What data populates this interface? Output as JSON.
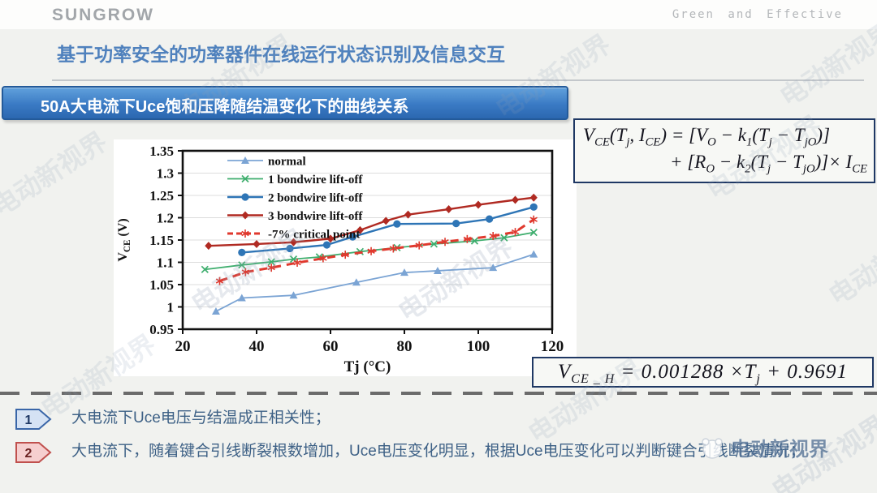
{
  "header": {
    "logo": "SUNGROW",
    "tagline": "Green and Effective"
  },
  "title": "基于功率安全的功率器件在线运行状态识别及信息交互",
  "banner": "50A大电流下Uce饱和压降随结温变化下的曲线关系",
  "formulas": {
    "vce_model_line1": "V_{CE}(T_{j}, I_{CE}) = [V_{O} − k_{1}(T_{j} − T_{jO})]",
    "vce_model_line2": "+ [R_{O} − k_{2}(T_{j} − T_{jO})]× I_{CE}",
    "vce_fit": "V_{CE _ H} = 0.001288 ×T_{j} + 0.9691"
  },
  "points": [
    {
      "num": "1",
      "text": "大电流下Uce电压与结温成正相关性；"
    },
    {
      "num": "2",
      "text": "大电流下，随着键合引线断裂根数增加，Uce电压变化明显，根据Uce电压变化可以判断键合引线断裂情况；"
    }
  ],
  "watermark": {
    "text": "电动新视界",
    "logo": "cat-face-icon"
  },
  "chart_data": {
    "type": "line",
    "title": "",
    "xlabel": "Tj (°C)",
    "ylabel": "V_{CE} (V)",
    "xlim": [
      20,
      120
    ],
    "ylim": [
      0.95,
      1.35
    ],
    "xticks": [
      20,
      40,
      60,
      80,
      100,
      120
    ],
    "yticks": [
      0.95,
      1,
      1.05,
      1.1,
      1.15,
      1.2,
      1.25,
      1.3,
      1.35
    ],
    "grid": "horizontal",
    "legend_position": "top-center-inside",
    "series": [
      {
        "name": "normal",
        "color": "#7ba4d4",
        "marker": "triangle",
        "dash": "solid",
        "width": 1.8,
        "points": [
          [
            29,
            0.99
          ],
          [
            36,
            1.02
          ],
          [
            50,
            1.026
          ],
          [
            67,
            1.055
          ],
          [
            80,
            1.077
          ],
          [
            89,
            1.081
          ],
          [
            104,
            1.088
          ],
          [
            115,
            1.118
          ]
        ]
      },
      {
        "name": "1 bondwire lift-off",
        "color": "#3fae6e",
        "marker": "x",
        "dash": "solid",
        "width": 1.8,
        "points": [
          [
            26,
            1.084
          ],
          [
            36,
            1.094
          ],
          [
            44,
            1.101
          ],
          [
            50,
            1.107
          ],
          [
            57,
            1.112
          ],
          [
            68,
            1.124
          ],
          [
            78,
            1.133
          ],
          [
            88,
            1.141
          ],
          [
            99,
            1.148
          ],
          [
            107,
            1.155
          ],
          [
            115,
            1.167
          ]
        ]
      },
      {
        "name": "2 bondwire lift-off",
        "color": "#2e75b6",
        "marker": "circle",
        "dash": "solid",
        "width": 2.4,
        "points": [
          [
            36,
            1.122
          ],
          [
            49,
            1.131
          ],
          [
            59,
            1.139
          ],
          [
            66,
            1.157
          ],
          [
            78,
            1.186
          ],
          [
            94,
            1.187
          ],
          [
            103,
            1.197
          ],
          [
            115,
            1.224
          ]
        ]
      },
      {
        "name": "3 bondwire lift-off",
        "color": "#b02a22",
        "marker": "diamond",
        "dash": "solid",
        "width": 2.4,
        "points": [
          [
            27,
            1.137
          ],
          [
            40,
            1.141
          ],
          [
            50,
            1.145
          ],
          [
            60,
            1.153
          ],
          [
            68,
            1.172
          ],
          [
            75,
            1.193
          ],
          [
            81,
            1.207
          ],
          [
            92,
            1.219
          ],
          [
            100,
            1.229
          ],
          [
            110,
            1.24
          ],
          [
            115,
            1.245
          ]
        ]
      },
      {
        "name": "-7% critical point",
        "color": "#e0392e",
        "marker": "asterisk",
        "dash": "dashed",
        "width": 3,
        "points": [
          [
            30,
            1.058
          ],
          [
            37,
            1.078
          ],
          [
            44,
            1.088
          ],
          [
            51,
            1.099
          ],
          [
            58,
            1.109
          ],
          [
            64,
            1.117
          ],
          [
            71,
            1.125
          ],
          [
            77,
            1.131
          ],
          [
            84,
            1.138
          ],
          [
            91,
            1.146
          ],
          [
            97,
            1.152
          ],
          [
            104,
            1.159
          ],
          [
            110,
            1.168
          ],
          [
            115,
            1.196
          ]
        ]
      }
    ]
  }
}
